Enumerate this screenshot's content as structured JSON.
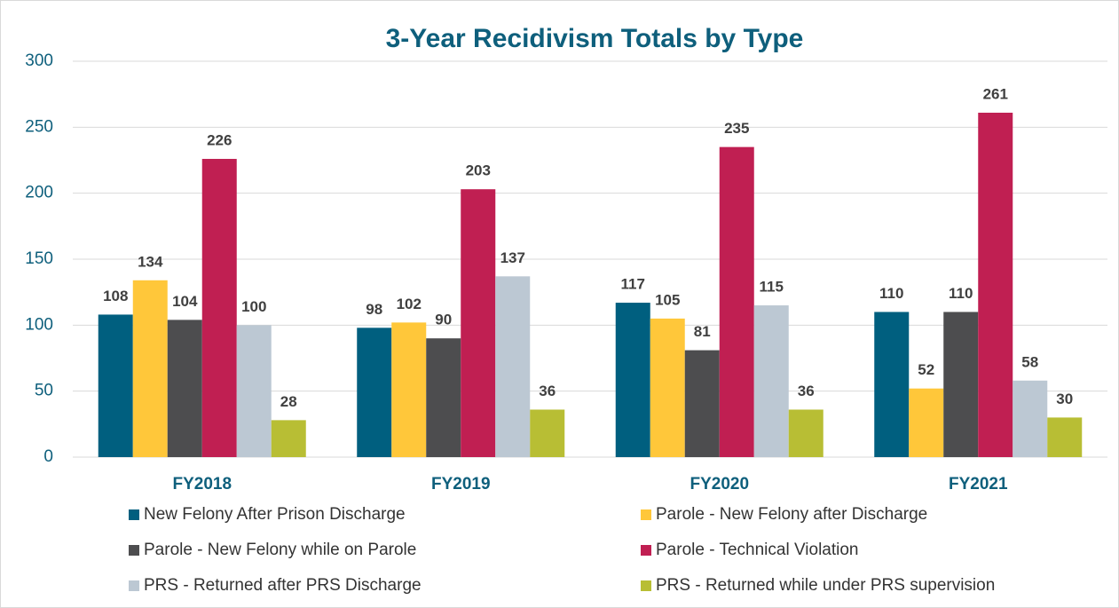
{
  "chart_data": {
    "type": "bar",
    "title": "3-Year Recidivism Totals by Type",
    "categories": [
      "FY2018",
      "FY2019",
      "FY2020",
      "FY2021"
    ],
    "series": [
      {
        "name": "New Felony After Prison Discharge",
        "color": "#005f7f",
        "values": [
          108,
          98,
          117,
          110
        ]
      },
      {
        "name": "Parole - New Felony after Discharge",
        "color": "#ffc73a",
        "values": [
          134,
          102,
          105,
          52
        ]
      },
      {
        "name": "Parole - New Felony while on Parole",
        "color": "#4d4d4f",
        "values": [
          104,
          90,
          81,
          110
        ]
      },
      {
        "name": "Parole - Technical Violation",
        "color": "#c01f52",
        "values": [
          226,
          203,
          235,
          261
        ]
      },
      {
        "name": "PRS - Returned after PRS Discharge",
        "color": "#bcc8d3",
        "values": [
          100,
          137,
          115,
          58
        ]
      },
      {
        "name": "PRS - Returned while under PRS supervision",
        "color": "#b8be34",
        "values": [
          28,
          36,
          36,
          30
        ]
      }
    ],
    "ylim": [
      0,
      300
    ],
    "yticks": [
      0,
      50,
      100,
      150,
      200,
      250,
      300
    ],
    "grid": true,
    "legend": "bottom"
  }
}
